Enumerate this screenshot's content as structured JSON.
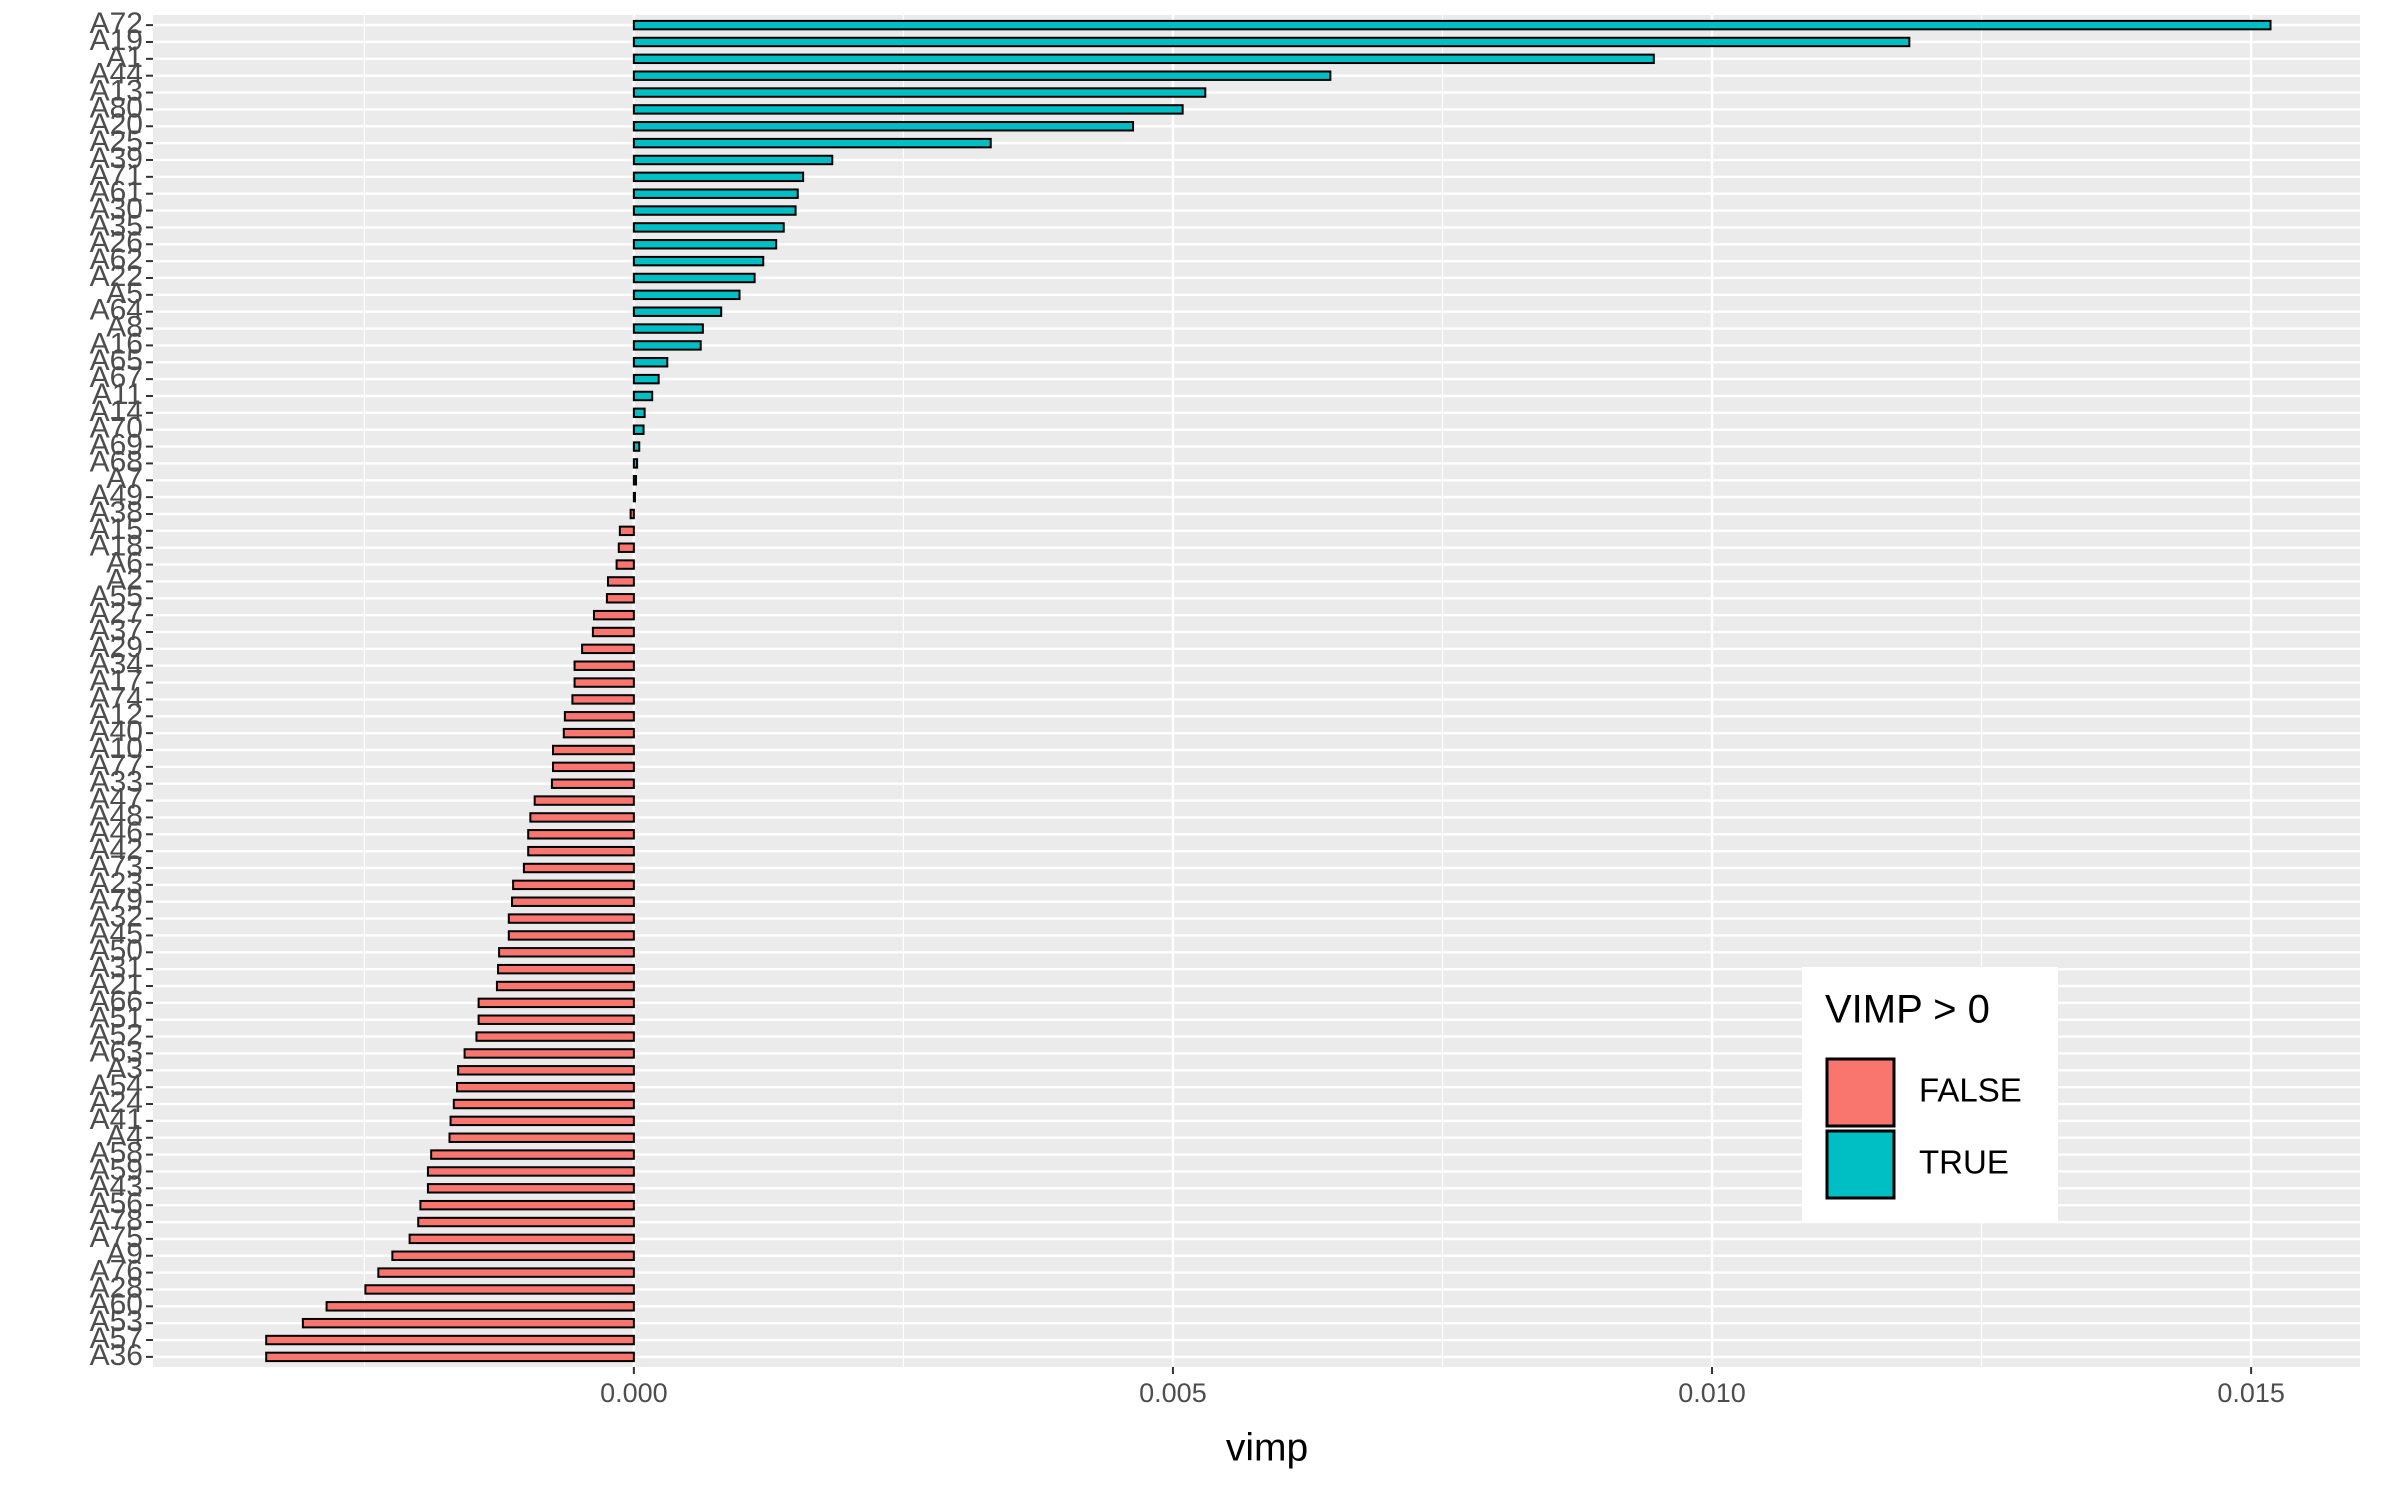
{
  "chart_data": {
    "type": "bar",
    "orientation": "horizontal",
    "x_label": "vimp",
    "categories": [
      "A72",
      "A19",
      "A1",
      "A44",
      "A13",
      "A80",
      "A20",
      "A25",
      "A39",
      "A71",
      "A61",
      "A30",
      "A35",
      "A26",
      "A62",
      "A22",
      "A5",
      "A64",
      "A8",
      "A16",
      "A65",
      "A67",
      "A11",
      "A14",
      "A70",
      "A69",
      "A68",
      "A7",
      "A49",
      "A38",
      "A15",
      "A18",
      "A6",
      "A2",
      "A55",
      "A27",
      "A37",
      "A29",
      "A34",
      "A17",
      "A74",
      "A12",
      "A40",
      "A10",
      "A77",
      "A33",
      "A47",
      "A48",
      "A46",
      "A42",
      "A73",
      "A23",
      "A79",
      "A32",
      "A45",
      "A50",
      "A31",
      "A21",
      "A66",
      "A51",
      "A52",
      "A63",
      "A3",
      "A54",
      "A24",
      "A41",
      "A4",
      "A58",
      "A59",
      "A43",
      "A56",
      "A78",
      "A75",
      "A9",
      "A76",
      "A28",
      "A60",
      "A53",
      "A57",
      "A36"
    ],
    "values": [
      0.01518,
      0.01183,
      0.00946,
      0.00646,
      0.0053,
      0.00509,
      0.00463,
      0.00331,
      0.00184,
      0.00157,
      0.00152,
      0.0015,
      0.00139,
      0.00132,
      0.0012,
      0.00112,
      0.00098,
      0.00081,
      0.00064,
      0.00062,
      0.00031,
      0.00023,
      0.00017,
      0.0001,
      9e-05,
      5e-05,
      3e-05,
      2e-05,
      1e-05,
      -3e-05,
      -0.00013,
      -0.00014,
      -0.00016,
      -0.00024,
      -0.00025,
      -0.00037,
      -0.00038,
      -0.00048,
      -0.00055,
      -0.00055,
      -0.00057,
      -0.00064,
      -0.00065,
      -0.00075,
      -0.00075,
      -0.00076,
      -0.00092,
      -0.00096,
      -0.00098,
      -0.00098,
      -0.00102,
      -0.00112,
      -0.00113,
      -0.00116,
      -0.00116,
      -0.00125,
      -0.00126,
      -0.00127,
      -0.00144,
      -0.00144,
      -0.00146,
      -0.00157,
      -0.00163,
      -0.00164,
      -0.00167,
      -0.0017,
      -0.00171,
      -0.00188,
      -0.00191,
      -0.00191,
      -0.00198,
      -0.002,
      -0.00208,
      -0.00224,
      -0.00237,
      -0.00249,
      -0.00285,
      -0.00307,
      -0.00341,
      -0.00341
    ],
    "xlim": [
      -0.00446,
      0.01601
    ],
    "xticks": [
      {
        "value": 0,
        "label": "0.000"
      },
      {
        "value": 0.005,
        "label": "0.005"
      },
      {
        "value": 0.01,
        "label": "0.010"
      },
      {
        "value": 0.015,
        "label": "0.015"
      }
    ],
    "grid": true,
    "legend": {
      "title": "VIMP > 0",
      "position": "bottom-right",
      "entries": [
        {
          "name": "FALSE",
          "color": "#f8766d"
        },
        {
          "name": "TRUE",
          "color": "#00bfc4"
        }
      ]
    }
  }
}
